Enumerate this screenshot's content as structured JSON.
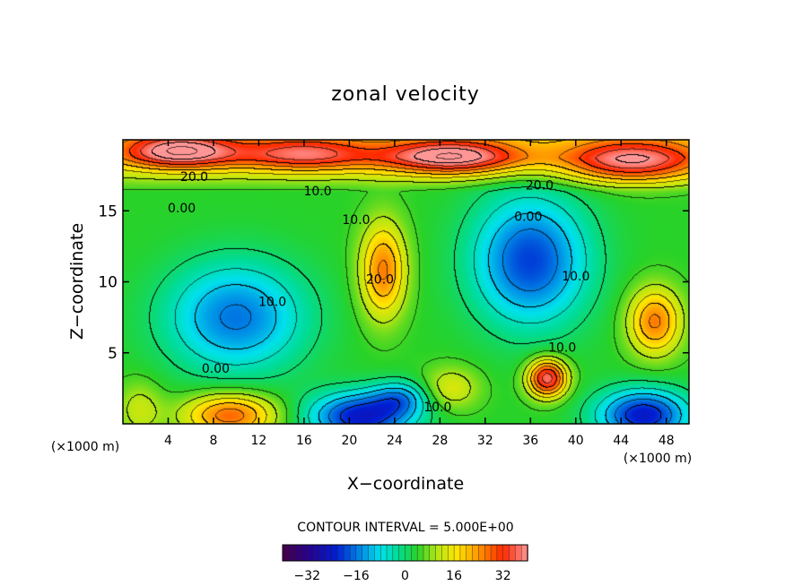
{
  "chart_data": {
    "type": "heatmap",
    "title": "zonal velocity",
    "xlabel": "X−coordinate",
    "ylabel": "Z−coordinate",
    "x_unit_left": "(×1000 m)",
    "x_unit_right": "(×1000 m)",
    "xlim": [
      0,
      50
    ],
    "ylim": [
      0,
      20
    ],
    "x_ticks": [
      4,
      8,
      12,
      16,
      20,
      24,
      28,
      32,
      36,
      40,
      44,
      48
    ],
    "y_ticks": [
      5,
      10,
      15
    ],
    "contour_interval_text": "CONTOUR INTERVAL = 5.000E+00",
    "colorbar": {
      "min": -40,
      "max": 40,
      "ticks": [
        -32,
        -16,
        0,
        16,
        32
      ]
    },
    "contour_labels": [
      {
        "text": "20.0",
        "x": 6.3,
        "y": 17.4
      },
      {
        "text": "20.0",
        "x": 36.8,
        "y": 16.8
      },
      {
        "text": "10.0",
        "x": 17.2,
        "y": 16.4
      },
      {
        "text": "0.00",
        "x": 5.2,
        "y": 15.2
      },
      {
        "text": "10.0",
        "x": 20.6,
        "y": 14.4
      },
      {
        "text": "0.00",
        "x": 35.8,
        "y": 14.6
      },
      {
        "text": "10.0",
        "x": 13.2,
        "y": 8.6
      },
      {
        "text": "20.0",
        "x": 22.7,
        "y": 10.2
      },
      {
        "text": "10.0",
        "x": 40.0,
        "y": 10.4
      },
      {
        "text": "0.00",
        "x": 8.2,
        "y": 3.9
      },
      {
        "text": "10.0",
        "x": 38.8,
        "y": 5.4
      },
      {
        "text": "10.0",
        "x": 27.8,
        "y": 1.2
      }
    ],
    "features": [
      {
        "x": 10,
        "y": 7.5,
        "value": -20,
        "sx": 6,
        "sy": 3.8
      },
      {
        "x": 36,
        "y": 11.5,
        "value": -24,
        "sx": 5,
        "sy": 4.5
      },
      {
        "x": 21,
        "y": 0.5,
        "value": -28,
        "sx": 4.5,
        "sy": 1.7
      },
      {
        "x": 46,
        "y": 0.6,
        "value": -28,
        "sx": 4,
        "sy": 1.8
      },
      {
        "x": 24.5,
        "y": 1.8,
        "value": -14,
        "sx": 2.5,
        "sy": 1.2
      },
      {
        "x": 23,
        "y": 10.8,
        "value": 22,
        "sx": 2,
        "sy": 3.3
      },
      {
        "x": 37.5,
        "y": 3.2,
        "value": 34,
        "sx": 1.7,
        "sy": 1.3
      },
      {
        "x": 47,
        "y": 7.2,
        "value": 22,
        "sx": 2.3,
        "sy": 2.3
      },
      {
        "x": 9.5,
        "y": 0.6,
        "value": 24,
        "sx": 4,
        "sy": 1.5
      },
      {
        "x": 29,
        "y": 18.8,
        "value": 30,
        "sx": 6,
        "sy": 1.2
      },
      {
        "x": 5,
        "y": 19.2,
        "value": 30,
        "sx": 5,
        "sy": 1.2
      },
      {
        "x": 16,
        "y": 19.0,
        "value": 22,
        "sx": 6,
        "sy": 1.2
      },
      {
        "x": 45,
        "y": 18.5,
        "value": 26,
        "sx": 6,
        "sy": 1.5
      },
      {
        "x": 29,
        "y": 2.5,
        "value": 10,
        "sx": 2.5,
        "sy": 1.5
      },
      {
        "x": 1.5,
        "y": 1.0,
        "value": 8,
        "sx": 2,
        "sy": 2
      }
    ]
  }
}
